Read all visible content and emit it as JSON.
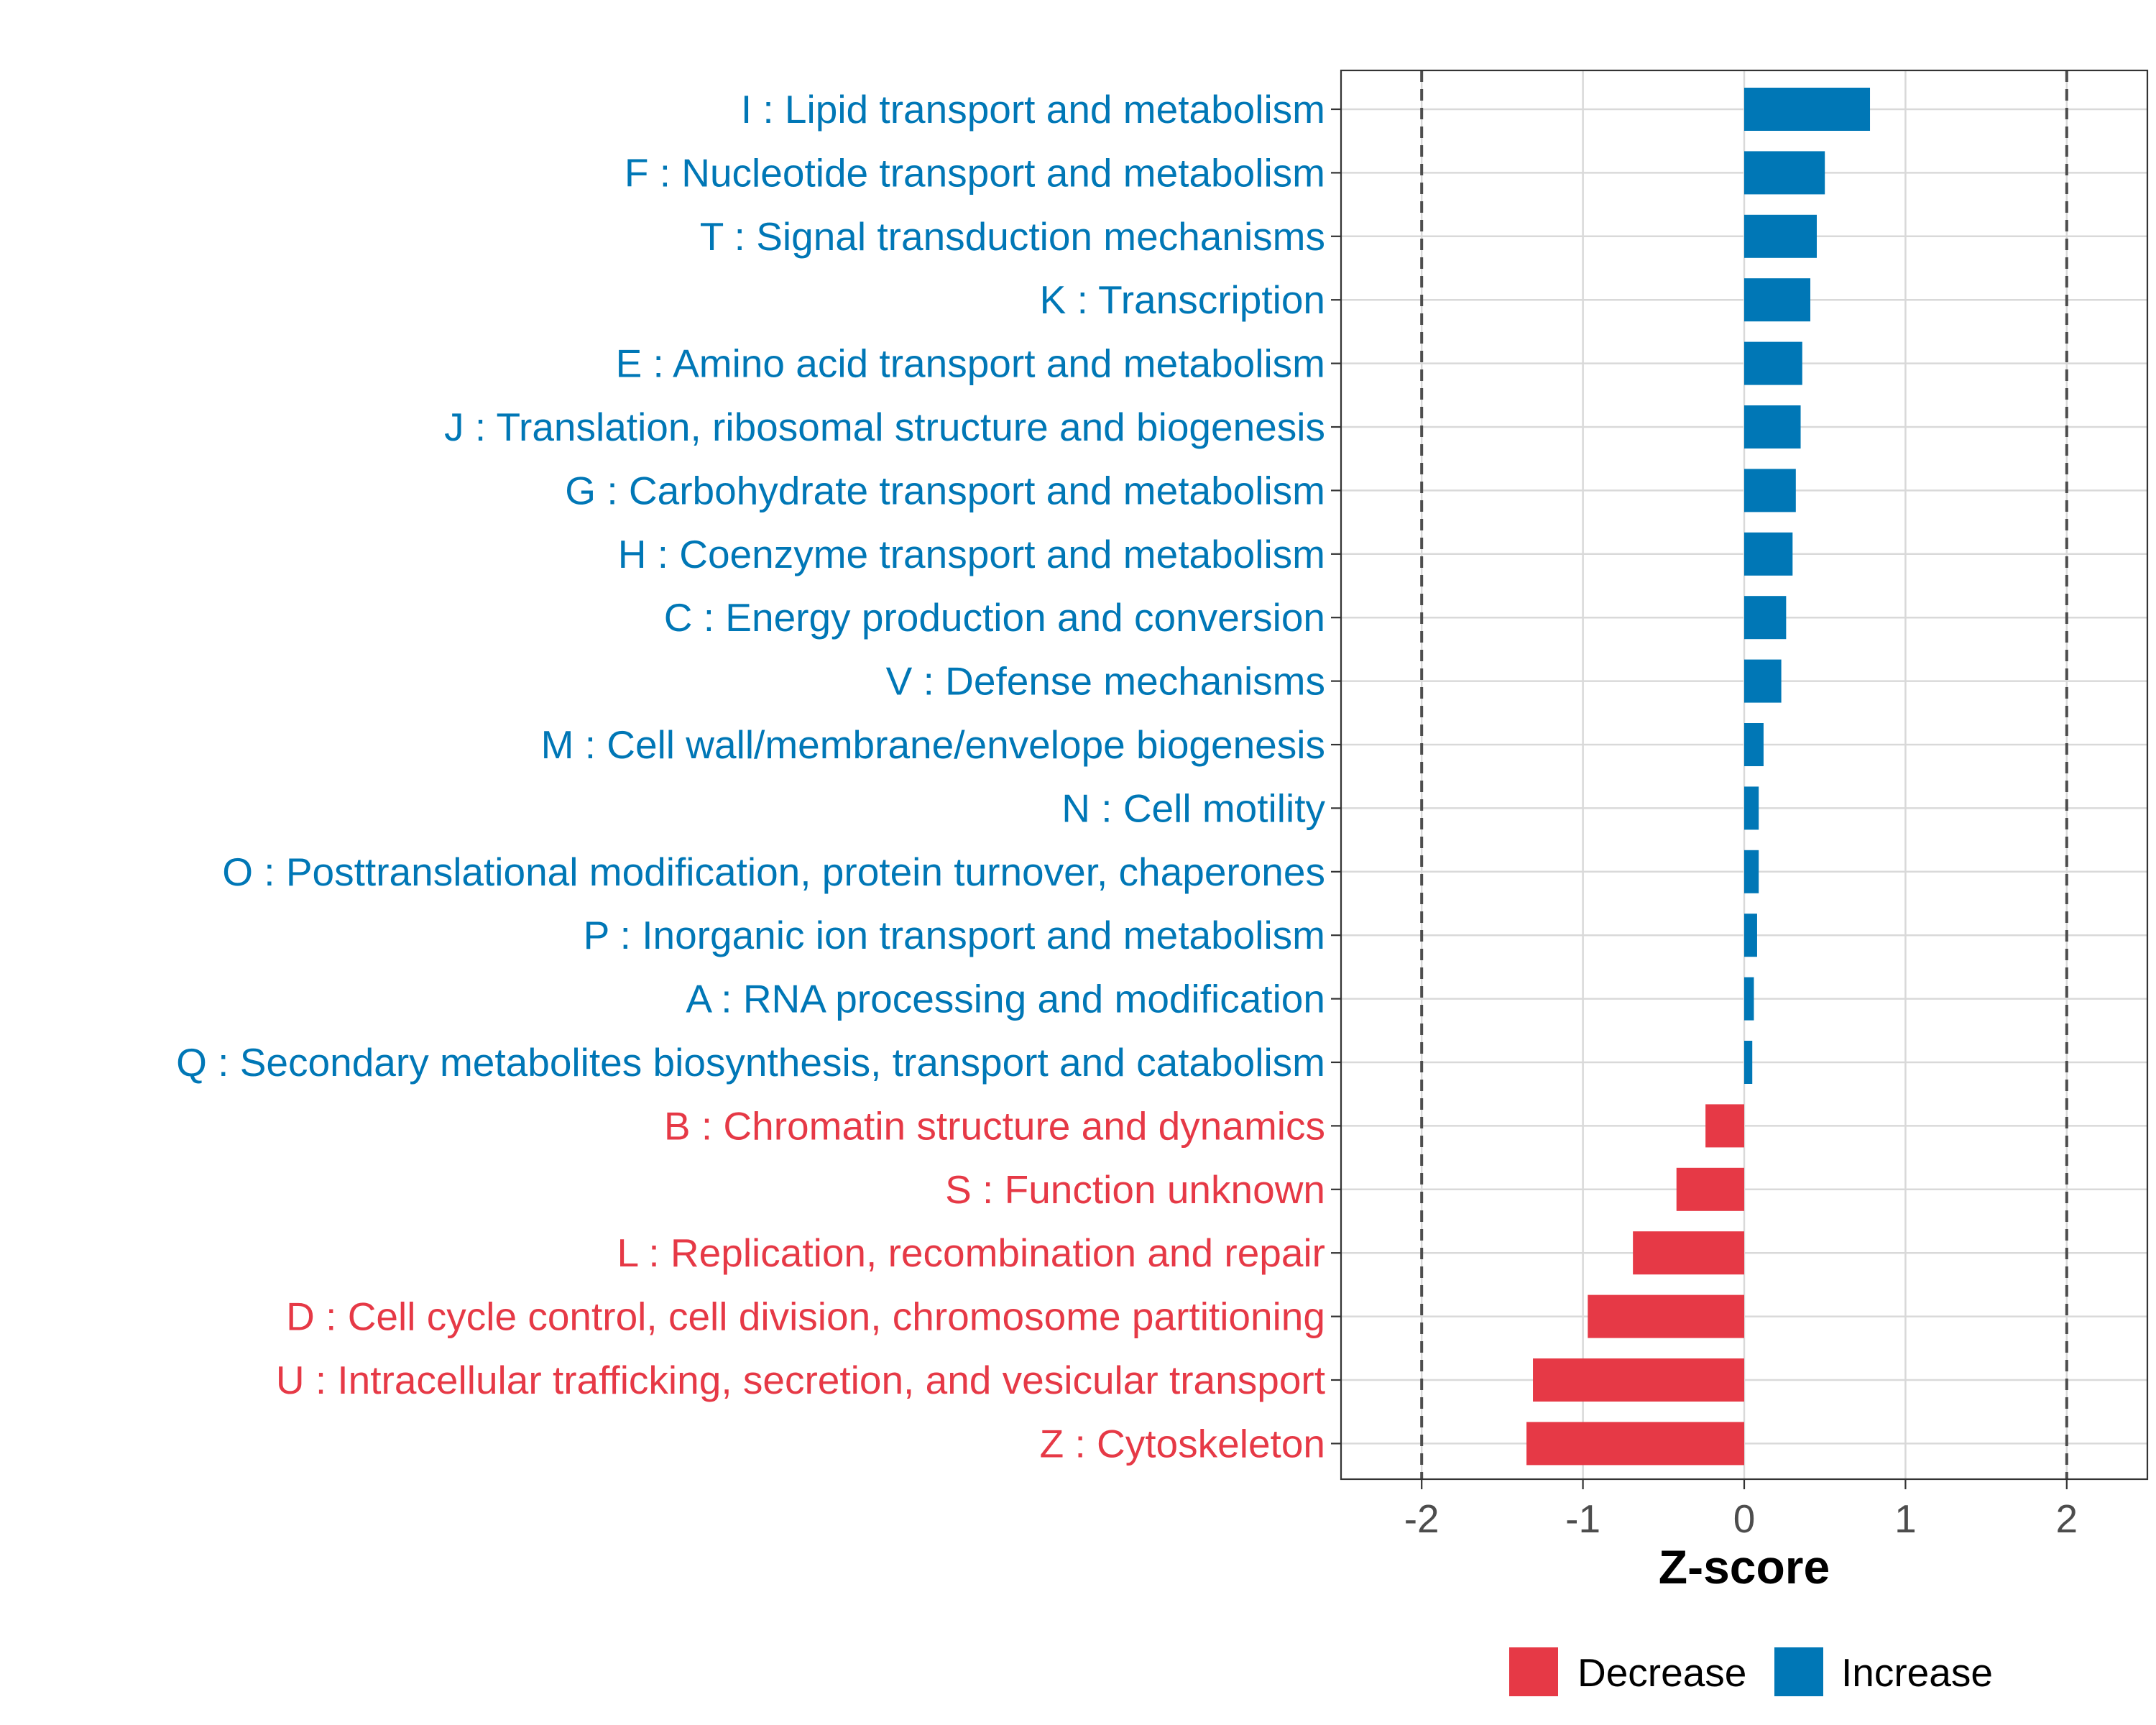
{
  "chart_data": {
    "type": "bar",
    "orientation": "horizontal",
    "xlabel": "Z-score",
    "ylabel": "",
    "xlim": [
      -2.5,
      2.5
    ],
    "x_ticks": [
      -2,
      -1,
      0,
      1,
      2
    ],
    "x_tick_labels": [
      "-2",
      "-1",
      "0",
      "1",
      "2"
    ],
    "reference_lines": [
      -2,
      2
    ],
    "grid": true,
    "legend_position": "bottom",
    "legend": [
      {
        "name": "Decrease",
        "color": "#E63946"
      },
      {
        "name": "Increase",
        "color": "#0077B6"
      }
    ],
    "categories": [
      "I : Lipid transport and metabolism",
      "F : Nucleotide transport and metabolism",
      "T : Signal transduction mechanisms",
      "K : Transcription",
      "E : Amino acid transport and metabolism",
      "J : Translation, ribosomal structure and biogenesis",
      "G : Carbohydrate transport and metabolism",
      "H : Coenzyme transport and metabolism",
      "C : Energy production and conversion",
      "V : Defense mechanisms",
      "M : Cell wall/membrane/envelope biogenesis",
      "N : Cell motility",
      "O : Posttranslational modification, protein turnover, chaperones",
      "P : Inorganic ion transport and metabolism",
      "A : RNA processing and modification",
      "Q : Secondary metabolites biosynthesis, transport and catabolism",
      "B : Chromatin structure and dynamics",
      "S : Function unknown",
      "L : Replication, recombination and repair",
      "D : Cell cycle control, cell division, chromosome partitioning",
      "U : Intracellular trafficking, secretion, and vesicular transport",
      "Z : Cytoskeleton"
    ],
    "values": [
      0.78,
      0.5,
      0.45,
      0.41,
      0.36,
      0.35,
      0.32,
      0.3,
      0.26,
      0.23,
      0.12,
      0.09,
      0.09,
      0.08,
      0.06,
      0.05,
      -0.24,
      -0.42,
      -0.69,
      -0.97,
      -1.31,
      -1.35
    ],
    "groups": [
      "Increase",
      "Increase",
      "Increase",
      "Increase",
      "Increase",
      "Increase",
      "Increase",
      "Increase",
      "Increase",
      "Increase",
      "Increase",
      "Increase",
      "Increase",
      "Increase",
      "Increase",
      "Increase",
      "Decrease",
      "Decrease",
      "Decrease",
      "Decrease",
      "Decrease",
      "Decrease"
    ]
  }
}
